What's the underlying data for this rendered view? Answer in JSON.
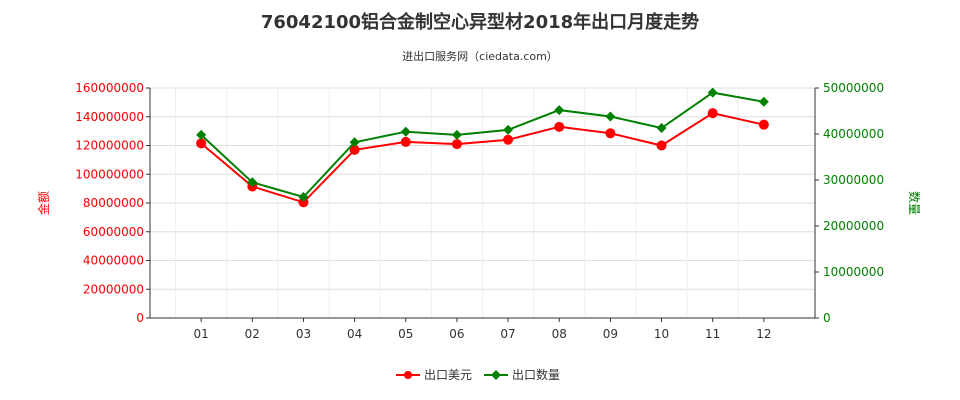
{
  "chart_data": {
    "type": "line",
    "title": "76042100铝合金制空心异型材2018年出口月度走势",
    "subtitle": "进出口服务网（ciedata.com）",
    "categories": [
      "01",
      "02",
      "03",
      "04",
      "05",
      "06",
      "07",
      "08",
      "09",
      "10",
      "11",
      "12"
    ],
    "y_left": {
      "label": "金额",
      "range": [
        0,
        160000000
      ],
      "ticks": [
        "0",
        "20000000",
        "40000000",
        "60000000",
        "80000000",
        "100000000",
        "120000000",
        "140000000",
        "160000000"
      ],
      "color": "#ff0000"
    },
    "y_right": {
      "label": "数量",
      "range": [
        0,
        50000000
      ],
      "ticks": [
        "0",
        "10000000",
        "20000000",
        "30000000",
        "40000000",
        "50000000"
      ],
      "color": "#008000"
    },
    "series": [
      {
        "name": "出口美元",
        "axis": "left",
        "color": "#ff0000",
        "marker": "circle",
        "values": [
          121500000,
          91500000,
          80500000,
          117000000,
          122500000,
          121000000,
          124000000,
          133000000,
          128500000,
          120000000,
          142500000,
          134500000
        ]
      },
      {
        "name": "出口数量",
        "axis": "right",
        "color": "#008000",
        "marker": "diamond",
        "values": [
          39800000,
          29500000,
          26300000,
          38200000,
          40500000,
          39800000,
          40900000,
          45200000,
          43800000,
          41300000,
          49000000,
          47000000
        ]
      }
    ],
    "legend_position": "bottom-center",
    "grid": true
  }
}
